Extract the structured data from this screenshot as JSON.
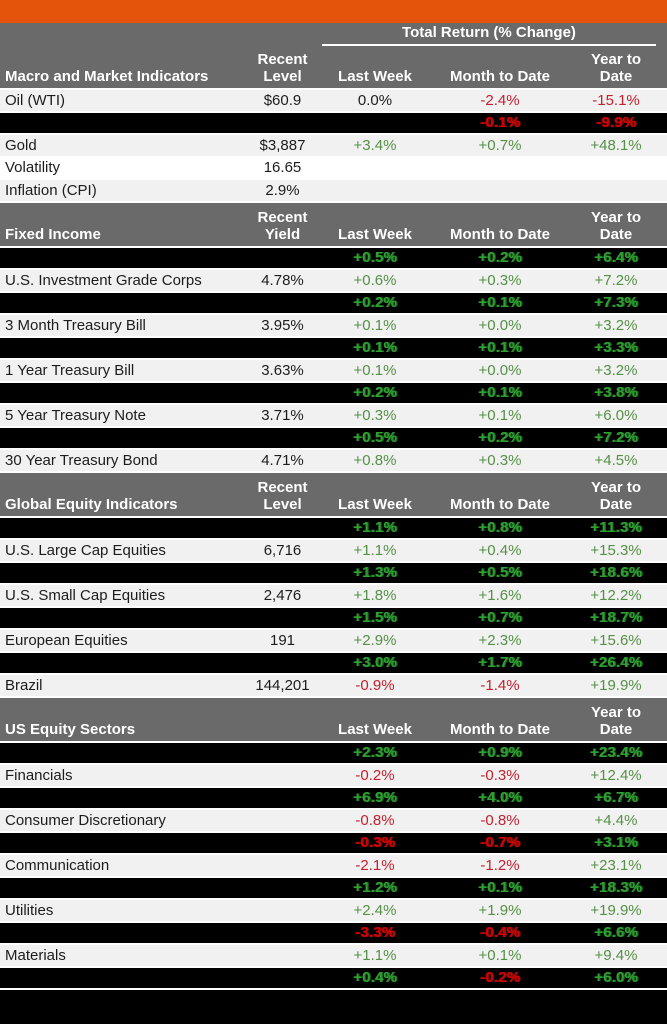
{
  "colors": {
    "accent_orange": "#E4540A",
    "header_gray": "#6A6A6A",
    "row_light": "#F1F1F1",
    "row_white": "#FFFFFF",
    "row_black": "#000000",
    "positive_green": "#559046",
    "negative_red": "#C4202E",
    "bold_green": "#2F9E33",
    "bold_red": "#D40000"
  },
  "table": {
    "total_return_header": "Total Return (% Change)",
    "col_last_week": "Last Week",
    "col_month_to_date": "Month to Date",
    "col_year_to_line1": "Year to",
    "col_year_to_line2": "Date",
    "sections": [
      {
        "id": "macro",
        "title": "Macro and Market Indicators",
        "level_label_line1": "Recent",
        "level_label_line2": "Level",
        "show_total_return": true,
        "rows": [
          {
            "label": "Oil (WTI)",
            "level": "$60.9",
            "bg": "light",
            "values": [
              {
                "text": "0.0%",
                "color": "black"
              },
              {
                "text": "-2.4%",
                "color": "red"
              },
              {
                "text": "-15.1%",
                "color": "red"
              }
            ]
          },
          {
            "label": "",
            "level": "",
            "bg": "black",
            "values": [
              {
                "text": "",
                "color": "none"
              },
              {
                "text": "-0.1%",
                "color": "red-bold"
              },
              {
                "text": "-9.9%",
                "color": "red-bold"
              }
            ]
          },
          {
            "label": "Gold",
            "level": "$3,887",
            "bg": "light",
            "values": [
              {
                "text": "+3.4%",
                "color": "green"
              },
              {
                "text": "+0.7%",
                "color": "green"
              },
              {
                "text": "+48.1%",
                "color": "green"
              }
            ]
          },
          {
            "label": "Volatility",
            "level": "16.65",
            "bg": "white",
            "values": [
              {
                "text": "",
                "color": "none"
              },
              {
                "text": "",
                "color": "none"
              },
              {
                "text": "",
                "color": "none"
              }
            ]
          },
          {
            "label": "Inflation (CPI)",
            "level": "2.9%",
            "bg": "light",
            "values": [
              {
                "text": "",
                "color": "none"
              },
              {
                "text": "",
                "color": "none"
              },
              {
                "text": "",
                "color": "none"
              }
            ]
          }
        ]
      },
      {
        "id": "fixed-income",
        "title": "Fixed Income",
        "level_label_line1": "Recent",
        "level_label_line2": "Yield",
        "show_total_return": false,
        "rows": [
          {
            "label": "",
            "level": "",
            "bg": "black",
            "values": [
              {
                "text": "+0.5%",
                "color": "green-bold"
              },
              {
                "text": "+0.2%",
                "color": "green-bold"
              },
              {
                "text": "+6.4%",
                "color": "green-bold"
              }
            ]
          },
          {
            "label": "U.S. Investment Grade Corps",
            "level": "4.78%",
            "bg": "light",
            "values": [
              {
                "text": "+0.6%",
                "color": "green"
              },
              {
                "text": "+0.3%",
                "color": "green"
              },
              {
                "text": "+7.2%",
                "color": "green"
              }
            ]
          },
          {
            "label": "",
            "level": "",
            "bg": "black",
            "values": [
              {
                "text": "+0.2%",
                "color": "green-bold"
              },
              {
                "text": "+0.1%",
                "color": "green-bold"
              },
              {
                "text": "+7.3%",
                "color": "green-bold"
              }
            ]
          },
          {
            "label": "3 Month Treasury Bill",
            "level": "3.95%",
            "bg": "light",
            "values": [
              {
                "text": "+0.1%",
                "color": "green"
              },
              {
                "text": "+0.0%",
                "color": "green"
              },
              {
                "text": "+3.2%",
                "color": "green"
              }
            ]
          },
          {
            "label": "",
            "level": "",
            "bg": "black",
            "values": [
              {
                "text": "+0.1%",
                "color": "green-bold"
              },
              {
                "text": "+0.1%",
                "color": "green-bold"
              },
              {
                "text": "+3.3%",
                "color": "green-bold"
              }
            ]
          },
          {
            "label": "1 Year Treasury Bill",
            "level": "3.63%",
            "bg": "light",
            "values": [
              {
                "text": "+0.1%",
                "color": "green"
              },
              {
                "text": "+0.0%",
                "color": "green"
              },
              {
                "text": "+3.2%",
                "color": "green"
              }
            ]
          },
          {
            "label": "",
            "level": "",
            "bg": "black",
            "values": [
              {
                "text": "+0.2%",
                "color": "green-bold"
              },
              {
                "text": "+0.1%",
                "color": "green-bold"
              },
              {
                "text": "+3.8%",
                "color": "green-bold"
              }
            ]
          },
          {
            "label": "5 Year Treasury Note",
            "level": "3.71%",
            "bg": "light",
            "values": [
              {
                "text": "+0.3%",
                "color": "green"
              },
              {
                "text": "+0.1%",
                "color": "green"
              },
              {
                "text": "+6.0%",
                "color": "green"
              }
            ]
          },
          {
            "label": "",
            "level": "",
            "bg": "black",
            "values": [
              {
                "text": "+0.5%",
                "color": "green-bold"
              },
              {
                "text": "+0.2%",
                "color": "green-bold"
              },
              {
                "text": "+7.2%",
                "color": "green-bold"
              }
            ]
          },
          {
            "label": "30 Year Treasury Bond",
            "level": "4.71%",
            "bg": "light",
            "values": [
              {
                "text": "+0.8%",
                "color": "green"
              },
              {
                "text": "+0.3%",
                "color": "green"
              },
              {
                "text": "+4.5%",
                "color": "green"
              }
            ]
          }
        ]
      },
      {
        "id": "global-equity",
        "title": "Global Equity Indicators",
        "level_label_line1": "Recent",
        "level_label_line2": "Level",
        "show_total_return": false,
        "rows": [
          {
            "label": "",
            "level": "",
            "bg": "black",
            "values": [
              {
                "text": "+1.1%",
                "color": "green-bold"
              },
              {
                "text": "+0.8%",
                "color": "green-bold"
              },
              {
                "text": "+11.3%",
                "color": "green-bold"
              }
            ]
          },
          {
            "label": "U.S. Large Cap Equities",
            "level": "6,716",
            "bg": "light",
            "values": [
              {
                "text": "+1.1%",
                "color": "green"
              },
              {
                "text": "+0.4%",
                "color": "green"
              },
              {
                "text": "+15.3%",
                "color": "green"
              }
            ]
          },
          {
            "label": "",
            "level": "",
            "bg": "black",
            "values": [
              {
                "text": "+1.3%",
                "color": "green-bold"
              },
              {
                "text": "+0.5%",
                "color": "green-bold"
              },
              {
                "text": "+18.6%",
                "color": "green-bold"
              }
            ]
          },
          {
            "label": "U.S. Small Cap Equities",
            "level": "2,476",
            "bg": "light",
            "values": [
              {
                "text": "+1.8%",
                "color": "green"
              },
              {
                "text": "+1.6%",
                "color": "green"
              },
              {
                "text": "+12.2%",
                "color": "green"
              }
            ]
          },
          {
            "label": "",
            "level": "",
            "bg": "black",
            "values": [
              {
                "text": "+1.5%",
                "color": "green-bold"
              },
              {
                "text": "+0.7%",
                "color": "green-bold"
              },
              {
                "text": "+18.7%",
                "color": "green-bold"
              }
            ]
          },
          {
            "label": "European Equities",
            "level": "191",
            "bg": "light",
            "values": [
              {
                "text": "+2.9%",
                "color": "green"
              },
              {
                "text": "+2.3%",
                "color": "green"
              },
              {
                "text": "+15.6%",
                "color": "green"
              }
            ]
          },
          {
            "label": "",
            "level": "",
            "bg": "black",
            "values": [
              {
                "text": "+3.0%",
                "color": "green-bold"
              },
              {
                "text": "+1.7%",
                "color": "green-bold"
              },
              {
                "text": "+26.4%",
                "color": "green-bold"
              }
            ]
          },
          {
            "label": "Brazil",
            "level": "144,201",
            "bg": "light",
            "values": [
              {
                "text": "-0.9%",
                "color": "red"
              },
              {
                "text": "-1.4%",
                "color": "red"
              },
              {
                "text": "+19.9%",
                "color": "green"
              }
            ]
          }
        ]
      },
      {
        "id": "us-equity-sectors",
        "title": "US Equity Sectors",
        "level_label_line1": "",
        "level_label_line2": "",
        "show_total_return": false,
        "rows": [
          {
            "label": "",
            "level": "",
            "bg": "black",
            "values": [
              {
                "text": "+2.3%",
                "color": "green-bold"
              },
              {
                "text": "+0.9%",
                "color": "green-bold"
              },
              {
                "text": "+23.4%",
                "color": "green-bold"
              }
            ]
          },
          {
            "label": "Financials",
            "level": "",
            "bg": "light",
            "values": [
              {
                "text": "-0.2%",
                "color": "red"
              },
              {
                "text": "-0.3%",
                "color": "red"
              },
              {
                "text": "+12.4%",
                "color": "green"
              }
            ]
          },
          {
            "label": "",
            "level": "",
            "bg": "black",
            "values": [
              {
                "text": "+6.9%",
                "color": "green-bold"
              },
              {
                "text": "+4.0%",
                "color": "green-bold"
              },
              {
                "text": "+6.7%",
                "color": "green-bold"
              }
            ]
          },
          {
            "label": "Consumer Discretionary",
            "level": "",
            "bg": "light",
            "values": [
              {
                "text": "-0.8%",
                "color": "red"
              },
              {
                "text": "-0.8%",
                "color": "red"
              },
              {
                "text": "+4.4%",
                "color": "green"
              }
            ]
          },
          {
            "label": "",
            "level": "",
            "bg": "black",
            "values": [
              {
                "text": "-0.3%",
                "color": "red-bold"
              },
              {
                "text": "-0.7%",
                "color": "red-bold"
              },
              {
                "text": "+3.1%",
                "color": "green-bold"
              }
            ]
          },
          {
            "label": "Communication",
            "level": "",
            "bg": "light",
            "values": [
              {
                "text": "-2.1%",
                "color": "red"
              },
              {
                "text": "-1.2%",
                "color": "red"
              },
              {
                "text": "+23.1%",
                "color": "green"
              }
            ]
          },
          {
            "label": "",
            "level": "",
            "bg": "black",
            "values": [
              {
                "text": "+1.2%",
                "color": "green-bold"
              },
              {
                "text": "+0.1%",
                "color": "green-bold"
              },
              {
                "text": "+18.3%",
                "color": "green-bold"
              }
            ]
          },
          {
            "label": "Utilities",
            "level": "",
            "bg": "light",
            "values": [
              {
                "text": "+2.4%",
                "color": "green"
              },
              {
                "text": "+1.9%",
                "color": "green"
              },
              {
                "text": "+19.9%",
                "color": "green"
              }
            ]
          },
          {
            "label": "",
            "level": "",
            "bg": "black",
            "values": [
              {
                "text": "-3.3%",
                "color": "red-bold"
              },
              {
                "text": "-0.4%",
                "color": "red-bold"
              },
              {
                "text": "+6.6%",
                "color": "green-bold"
              }
            ]
          },
          {
            "label": "Materials",
            "level": "",
            "bg": "light",
            "values": [
              {
                "text": "+1.1%",
                "color": "green"
              },
              {
                "text": "+0.1%",
                "color": "green"
              },
              {
                "text": "+9.4%",
                "color": "green"
              }
            ]
          },
          {
            "label": "",
            "level": "",
            "bg": "black",
            "values": [
              {
                "text": "+0.4%",
                "color": "green-bold"
              },
              {
                "text": "-0.2%",
                "color": "red-bold"
              },
              {
                "text": "+6.0%",
                "color": "green-bold"
              }
            ]
          }
        ]
      }
    ]
  }
}
